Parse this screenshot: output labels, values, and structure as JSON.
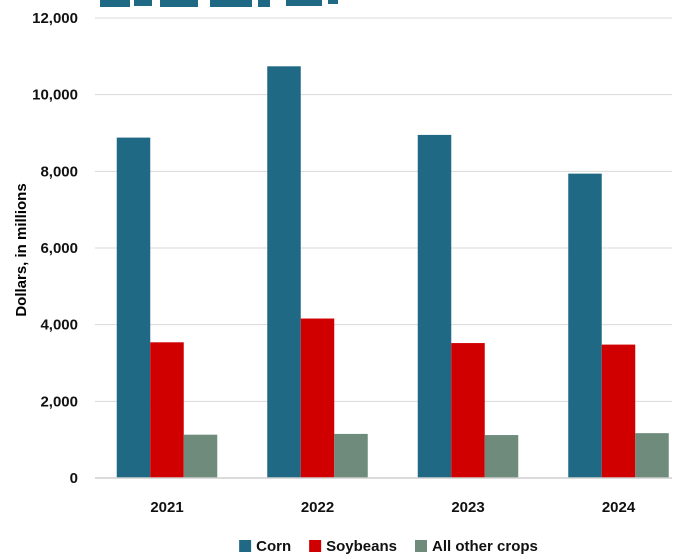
{
  "chart_data": {
    "type": "bar",
    "categories": [
      "2021",
      "2022",
      "2023",
      "2024"
    ],
    "series": [
      {
        "name": "Corn",
        "color": "#1f6985",
        "values": [
          8880,
          10740,
          8950,
          7940
        ]
      },
      {
        "name": "Soybeans",
        "color": "#d10000",
        "values": [
          3540,
          4160,
          3520,
          3480
        ]
      },
      {
        "name": "All other crops",
        "color": "#6e8b7b",
        "values": [
          1130,
          1150,
          1120,
          1170
        ]
      }
    ],
    "ylabel": "Dollars, in millions",
    "ylim": [
      0,
      12000
    ],
    "yticks": [
      "0",
      "2,000",
      "4,000",
      "6,000",
      "8,000",
      "10,000",
      "12,000"
    ],
    "grid": true,
    "legend": "bottom",
    "title_fragment_color": "#1f6985"
  }
}
